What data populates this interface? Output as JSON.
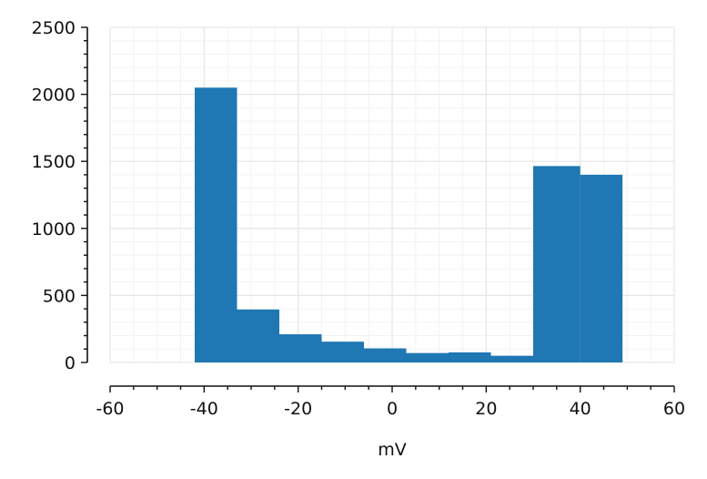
{
  "chart_data": {
    "type": "bar",
    "title": "",
    "xlabel": "mV",
    "ylabel": "",
    "xlim": [
      -60,
      60
    ],
    "ylim": [
      0,
      2500
    ],
    "xticks": [
      -60,
      -40,
      -20,
      0,
      20,
      40,
      60
    ],
    "yticks": [
      0,
      500,
      1000,
      1500,
      2000,
      2500
    ],
    "xtick_labels": [
      "-60",
      "-40",
      "-20",
      "0",
      "20",
      "40",
      "60"
    ],
    "ytick_labels": [
      "0",
      "500",
      "1000",
      "1500",
      "2000",
      "2500"
    ],
    "grid": true,
    "bar_color": "#1f77b4",
    "bins": [
      {
        "x0": -42.0,
        "x1": -33.0,
        "value": 2050
      },
      {
        "x0": -33.0,
        "x1": -24.0,
        "value": 395
      },
      {
        "x0": -24.0,
        "x1": -15.0,
        "value": 210
      },
      {
        "x0": -15.0,
        "x1": -6.0,
        "value": 155
      },
      {
        "x0": -6.0,
        "x1": 3.0,
        "value": 105
      },
      {
        "x0": 3.0,
        "x1": 12.0,
        "value": 70
      },
      {
        "x0": 12.0,
        "x1": 21.0,
        "value": 75
      },
      {
        "x0": 21.0,
        "x1": 30.0,
        "value": 50
      },
      {
        "x0": 30.0,
        "x1": 40.0,
        "value": 1465
      },
      {
        "x0": 40.0,
        "x1": 49.0,
        "value": 1400
      }
    ]
  }
}
